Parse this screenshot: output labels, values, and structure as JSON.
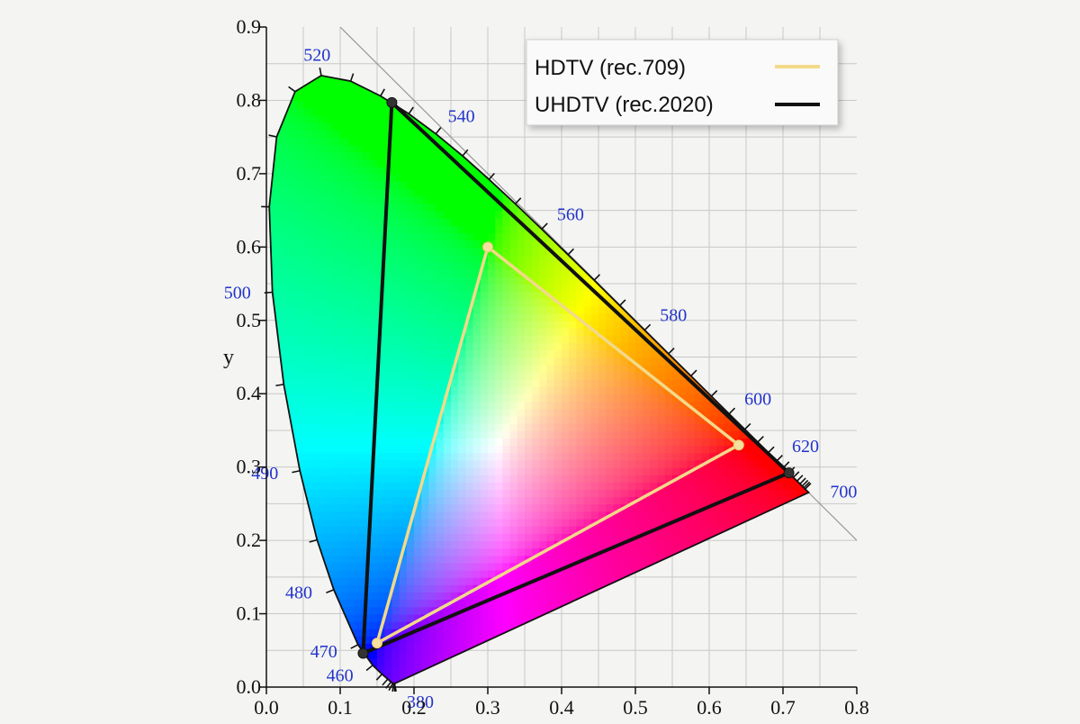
{
  "chart_data": {
    "type": "scatter",
    "xlabel": "",
    "ylabel": "y",
    "xlim": [
      0.0,
      0.8
    ],
    "ylim": [
      0.0,
      0.9
    ],
    "x_ticks": [
      "0.0",
      "0.1",
      "0.2",
      "0.3",
      "0.4",
      "0.5",
      "0.6",
      "0.7",
      "0.8"
    ],
    "y_ticks": [
      "0.0",
      "0.1",
      "0.2",
      "0.3",
      "0.4",
      "0.5",
      "0.6",
      "0.7",
      "0.8",
      "0.9"
    ],
    "grid": true,
    "legend_position": "top-right",
    "spectral_locus": [
      [
        0.1741,
        0.005
      ],
      [
        0.1738,
        0.0049
      ],
      [
        0.1736,
        0.005
      ],
      [
        0.1733,
        0.0048
      ],
      [
        0.1726,
        0.0048
      ],
      [
        0.1714,
        0.0051
      ],
      [
        0.1689,
        0.0069
      ],
      [
        0.1644,
        0.0109
      ],
      [
        0.1566,
        0.0177
      ],
      [
        0.144,
        0.0297
      ],
      [
        0.1241,
        0.0578
      ],
      [
        0.0913,
        0.1327
      ],
      [
        0.0687,
        0.2007
      ],
      [
        0.0454,
        0.295
      ],
      [
        0.0235,
        0.4127
      ],
      [
        0.0082,
        0.5384
      ],
      [
        0.0039,
        0.6548
      ],
      [
        0.0139,
        0.7502
      ],
      [
        0.0389,
        0.812
      ],
      [
        0.0743,
        0.8338
      ],
      [
        0.1142,
        0.8262
      ],
      [
        0.1547,
        0.8059
      ],
      [
        0.1929,
        0.7816
      ],
      [
        0.2296,
        0.7543
      ],
      [
        0.2658,
        0.7243
      ],
      [
        0.3016,
        0.6923
      ],
      [
        0.3373,
        0.6589
      ],
      [
        0.3731,
        0.6245
      ],
      [
        0.4087,
        0.5896
      ],
      [
        0.4441,
        0.5547
      ],
      [
        0.4788,
        0.5202
      ],
      [
        0.5125,
        0.4866
      ],
      [
        0.5448,
        0.4544
      ],
      [
        0.5752,
        0.4242
      ],
      [
        0.6029,
        0.3965
      ],
      [
        0.627,
        0.3725
      ],
      [
        0.6482,
        0.3514
      ],
      [
        0.6658,
        0.334
      ],
      [
        0.6801,
        0.3197
      ],
      [
        0.6915,
        0.3083
      ],
      [
        0.7006,
        0.2993
      ],
      [
        0.7079,
        0.292
      ],
      [
        0.714,
        0.2859
      ],
      [
        0.719,
        0.2809
      ],
      [
        0.723,
        0.277
      ],
      [
        0.726,
        0.274
      ],
      [
        0.7283,
        0.2717
      ],
      [
        0.73,
        0.27
      ],
      [
        0.7347,
        0.2653
      ]
    ],
    "wavelength_labels": [
      {
        "label": "380",
        "x": 0.1741,
        "y": 0.005,
        "nx": 0.55,
        "ny": -0.83
      },
      {
        "label": "460",
        "x": 0.144,
        "y": 0.0297,
        "nx": -1.0,
        "ny": -0.5
      },
      {
        "label": "470",
        "x": 0.1241,
        "y": 0.0578,
        "nx": -1.0,
        "ny": -0.3
      },
      {
        "label": "480",
        "x": 0.0913,
        "y": 0.1327,
        "nx": -1.0,
        "ny": -0.1
      },
      {
        "label": "490",
        "x": 0.0454,
        "y": 0.295,
        "nx": -1.0,
        "ny": -0.1
      },
      {
        "label": "500",
        "x": 0.0082,
        "y": 0.5384,
        "nx": -1.0,
        "ny": 0.0
      },
      {
        "label": "520",
        "x": 0.0743,
        "y": 0.8338,
        "nx": -0.2,
        "ny": 1.0
      },
      {
        "label": "540",
        "x": 0.2296,
        "y": 0.7543,
        "nx": 0.6,
        "ny": 0.9
      },
      {
        "label": "560",
        "x": 0.3731,
        "y": 0.6245,
        "nx": 0.7,
        "ny": 0.7
      },
      {
        "label": "580",
        "x": 0.5125,
        "y": 0.4866,
        "nx": 0.7,
        "ny": 0.7
      },
      {
        "label": "600",
        "x": 0.627,
        "y": 0.3725,
        "nx": 0.7,
        "ny": 0.7
      },
      {
        "label": "620",
        "x": 0.6915,
        "y": 0.3083,
        "nx": 0.7,
        "ny": 0.7
      },
      {
        "label": "700",
        "x": 0.7347,
        "y": 0.2653,
        "nx": 1.0,
        "ny": 0.05
      }
    ],
    "series": [
      {
        "name": "HDTV (rec.709)",
        "color": "#f3d98a",
        "points": [
          [
            0.64,
            0.33
          ],
          [
            0.3,
            0.6
          ],
          [
            0.15,
            0.06
          ]
        ]
      },
      {
        "name": "UHDTV (rec.2020)",
        "color": "#111111",
        "points": [
          [
            0.708,
            0.292
          ],
          [
            0.17,
            0.797
          ],
          [
            0.131,
            0.046
          ]
        ]
      }
    ]
  }
}
